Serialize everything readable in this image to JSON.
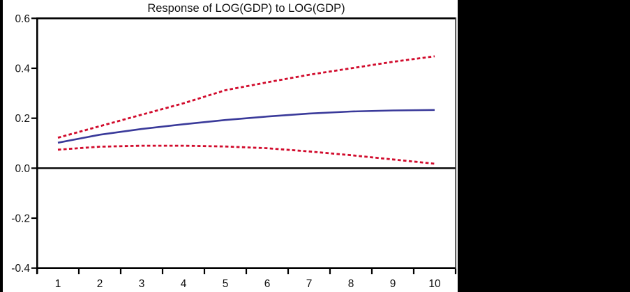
{
  "title": "Response of LOG(GDP) to LOG(GDP)",
  "colors": {
    "background": "#ffffff",
    "mask": "#000000",
    "axis": "#000000",
    "frame_right": "#3c3c3c",
    "text": "#111111",
    "response_line": "#3a3a9a",
    "band_line": "#d10b2c"
  },
  "chart_data": {
    "type": "line",
    "title": "Response of LOG(GDP) to LOG(GDP)",
    "xlabel": "",
    "ylabel": "",
    "x": [
      1,
      2,
      3,
      4,
      5,
      6,
      7,
      8,
      9,
      10
    ],
    "x_tick_labels": [
      "1",
      "2",
      "3",
      "4",
      "5",
      "6",
      "7",
      "8",
      "9",
      "10"
    ],
    "y_ticks": [
      0.6,
      0.4,
      0.2,
      0.0,
      -0.2,
      -0.4
    ],
    "y_tick_labels": [
      "0.6",
      "0.4",
      "0.2",
      "0.0",
      "-0.2",
      "-0.4"
    ],
    "ylim": [
      -0.4,
      0.6
    ],
    "grid": false,
    "legend": "none",
    "zero_line": true,
    "series": [
      {
        "name": "response",
        "style": "solid",
        "color": "#3a3a9a",
        "values": [
          0.102,
          0.134,
          0.157,
          0.176,
          0.193,
          0.207,
          0.219,
          0.227,
          0.231,
          0.233
        ]
      },
      {
        "name": "upper-confidence-band",
        "style": "dotted",
        "color": "#d10b2c",
        "values": [
          0.122,
          0.168,
          0.214,
          0.26,
          0.312,
          0.344,
          0.374,
          0.4,
          0.426,
          0.448
        ]
      },
      {
        "name": "lower-confidence-band",
        "style": "dotted",
        "color": "#d10b2c",
        "values": [
          0.074,
          0.086,
          0.09,
          0.09,
          0.087,
          0.08,
          0.067,
          0.052,
          0.035,
          0.018
        ]
      }
    ]
  }
}
